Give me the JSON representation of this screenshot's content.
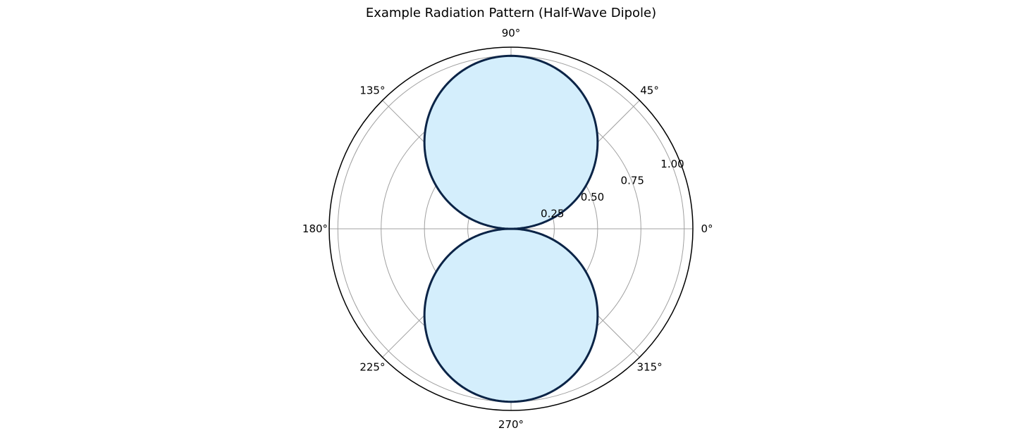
{
  "chart_data": {
    "type": "polar-line",
    "title": "Example Radiation Pattern (Half-Wave Dipole)",
    "theta_unit": "degrees",
    "angular_ticks": [
      "0°",
      "45°",
      "90°",
      "135°",
      "180°",
      "225°",
      "270°",
      "315°"
    ],
    "angular_tick_values": [
      0,
      45,
      90,
      135,
      180,
      225,
      270,
      315
    ],
    "radial_ticks": [
      "0.25",
      "0.50",
      "0.75",
      "1.00"
    ],
    "radial_tick_values": [
      0.25,
      0.5,
      0.75,
      1.0
    ],
    "rlim": [
      0,
      1.05
    ],
    "label_angle_deg": 22.5,
    "grid": true,
    "series": [
      {
        "expression": "r = |sin θ|",
        "theta": [
          0,
          15,
          30,
          45,
          60,
          75,
          90,
          105,
          120,
          135,
          150,
          165,
          180,
          195,
          210,
          225,
          240,
          255,
          270,
          285,
          300,
          315,
          330,
          345,
          360
        ],
        "r": [
          0.0,
          0.259,
          0.5,
          0.707,
          0.866,
          0.966,
          1.0,
          0.966,
          0.866,
          0.707,
          0.5,
          0.259,
          0.0,
          0.259,
          0.5,
          0.707,
          0.866,
          0.966,
          1.0,
          0.966,
          0.866,
          0.707,
          0.5,
          0.259,
          0.0
        ],
        "line_color": "#0b2447",
        "fill_color": "#d4eefc"
      }
    ],
    "colors": {
      "grid": "#a0a0a0",
      "frame": "#000000"
    }
  }
}
